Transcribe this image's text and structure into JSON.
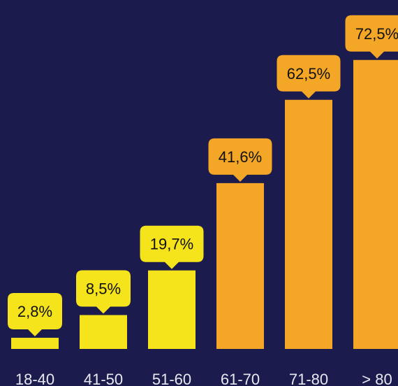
{
  "chart_data": {
    "type": "bar",
    "title": "",
    "xlabel": "",
    "ylabel": "",
    "ylim": [
      0,
      80
    ],
    "categories": [
      "18-40",
      "41-50",
      "51-60",
      "61-70",
      "71-80",
      "> 80"
    ],
    "values": [
      2.8,
      8.5,
      19.7,
      41.6,
      62.5,
      72.5
    ],
    "value_labels": [
      "2,8%",
      "8,5%",
      "19,7%",
      "41,6%",
      "62,5%",
      "72,5%"
    ],
    "bar_colors": [
      "#f5e31b",
      "#f5e31b",
      "#f5e31b",
      "#f4a626",
      "#f4a626",
      "#f4a626"
    ],
    "background_color": "#1c1b4d",
    "label_text_color": "#111111",
    "tick_text_color": "#e8e8f0",
    "grid": false,
    "legend": "none"
  }
}
